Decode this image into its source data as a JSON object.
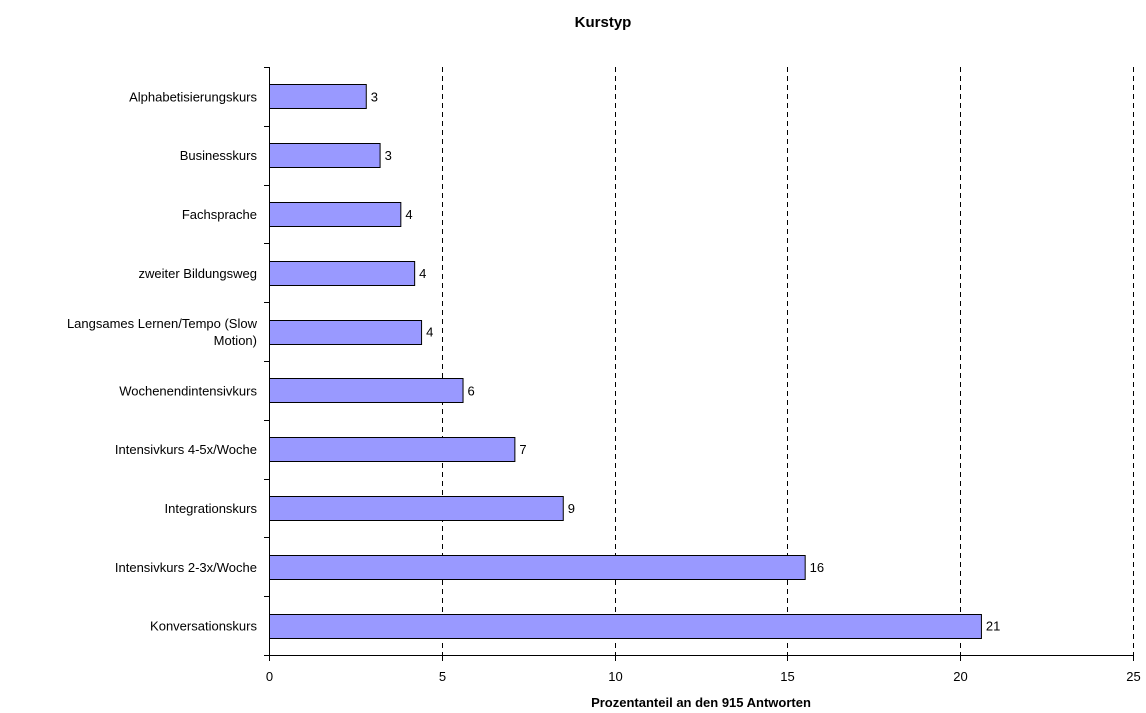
{
  "chart_data": {
    "type": "bar",
    "orientation": "horizontal",
    "title": "Kurstyp",
    "xlabel": "Prozentanteil an den 915 Antworten",
    "ylabel": "",
    "xlim": [
      0,
      25
    ],
    "xticks": [
      0,
      5,
      10,
      15,
      20,
      25
    ],
    "grid": "vertical dashed",
    "categories": [
      "Alphabetisierungskurs",
      "Businesskurs",
      "Fachsprache",
      "zweiter Bildungsweg",
      "Langsames Lernen/Tempo (Slow Motion)",
      "Wochenendintensivkurs",
      "Intensivkurs 4-5x/Woche",
      "Integrationskurs",
      "Intensivkurs 2-3x/Woche",
      "Konversationskurs"
    ],
    "category_label_lines": [
      [
        "Alphabetisierungskurs"
      ],
      [
        "Businesskurs"
      ],
      [
        "Fachsprache"
      ],
      [
        "zweiter Bildungsweg"
      ],
      [
        "Langsames Lernen/Tempo (Slow",
        "Motion)"
      ],
      [
        "Wochenendintensivkurs"
      ],
      [
        "Intensivkurs 4-5x/Woche"
      ],
      [
        "Integrationskurs"
      ],
      [
        "Intensivkurs 2-3x/Woche"
      ],
      [
        "Konversationskurs"
      ]
    ],
    "values": [
      2.8,
      3.2,
      3.8,
      4.2,
      4.4,
      5.6,
      7.1,
      8.5,
      15.5,
      20.6
    ],
    "data_labels": [
      "3",
      "3",
      "4",
      "4",
      "4",
      "6",
      "7",
      "9",
      "16",
      "21"
    ],
    "bar_color": "#9999ff",
    "bar_border": "#000000",
    "grid_color": "#000000"
  }
}
